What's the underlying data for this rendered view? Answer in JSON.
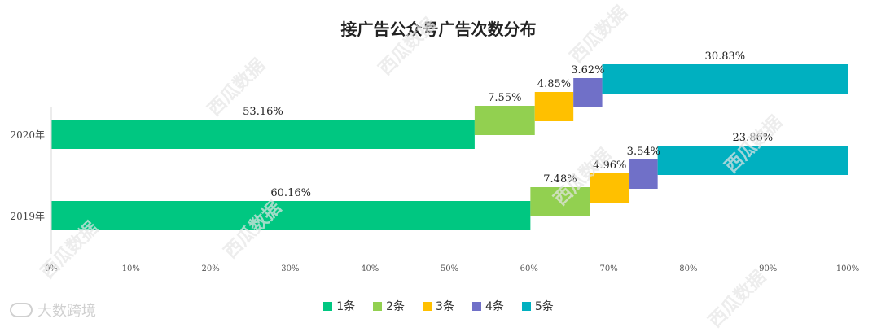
{
  "title": "接广告公众号广告次数分布",
  "watermark_text": "西瓜数据",
  "brand": "大数跨境",
  "chart_data": {
    "type": "bar",
    "orientation": "horizontal",
    "stacked": true,
    "title": "接广告公众号广告次数分布",
    "categories": [
      "2020年",
      "2019年"
    ],
    "series": [
      {
        "name": "1条",
        "color": "#00c781",
        "values": [
          53.16,
          60.16
        ]
      },
      {
        "name": "2条",
        "color": "#92d050",
        "values": [
          7.55,
          7.48
        ]
      },
      {
        "name": "3条",
        "color": "#ffc000",
        "values": [
          4.85,
          4.96
        ]
      },
      {
        "name": "4条",
        "color": "#7070c8",
        "values": [
          3.62,
          3.54
        ]
      },
      {
        "name": "5条",
        "color": "#00b0c0",
        "values": [
          30.83,
          23.86
        ]
      }
    ],
    "xlim": [
      0,
      100
    ],
    "xticks": [
      "0%",
      "10%",
      "20%",
      "30%",
      "40%",
      "50%",
      "60%",
      "70%",
      "80%",
      "90%",
      "100%"
    ],
    "grid": false,
    "legend_position": "bottom"
  }
}
